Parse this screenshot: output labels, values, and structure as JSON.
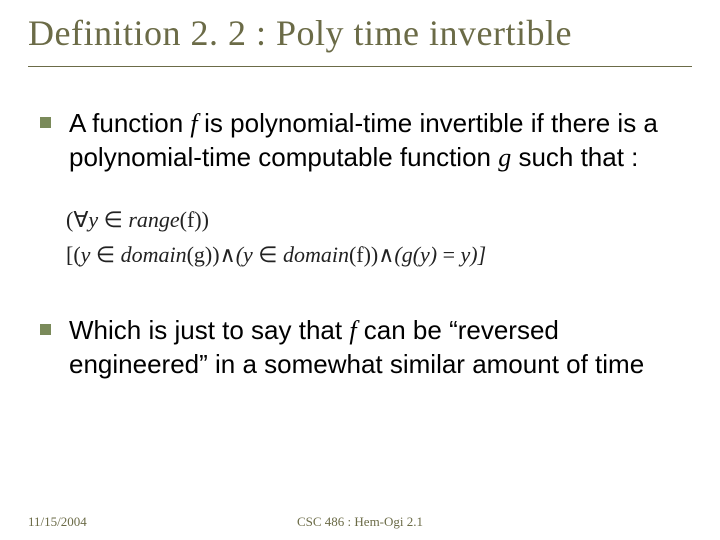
{
  "title": "Definition 2. 2 : Poly time invertible",
  "bullets": [
    {
      "pre": "A function ",
      "var1": "f ",
      "mid": " is polynomial-time invertible if there is a polynomial-time computable function ",
      "var2": "g",
      "post": "  such that :"
    },
    {
      "pre": "Which is just to say that ",
      "var1": "f",
      "mid": " can be “reversed engineered” in a somewhat similar amount of time",
      "var2": "",
      "post": ""
    }
  ],
  "formula": {
    "line1_open": "(",
    "line1_forall": "∀",
    "line1_y": "y ",
    "line1_in": "∈ ",
    "line1_range": "range",
    "line1_paren_f": "(f))",
    "line2_open": "[(",
    "line2_y1": "y ",
    "line2_in1": "∈ ",
    "line2_domain1": "domain",
    "line2_g": "(g))",
    "line2_and1": "∧",
    "line2_y2": "(y ",
    "line2_in2": "∈ ",
    "line2_domain2": "domain",
    "line2_f": "(f))",
    "line2_and2": "∧",
    "line2_gy": "(g(y) ",
    "line2_eq": "= ",
    "line2_yend": "y)]"
  },
  "footer": {
    "date": "11/15/2004",
    "center": "CSC 486 : Hem-Ogi 2.1"
  },
  "colors": {
    "title_color": "#6b6b47",
    "bullet_color": "#7a8a5a",
    "text_color": "#000000",
    "background": "#ffffff",
    "footer_color": "#6b6b47"
  },
  "typography": {
    "title_fontsize": 36,
    "body_fontsize": 26,
    "formula_fontsize": 22,
    "footer_fontsize": 13
  }
}
